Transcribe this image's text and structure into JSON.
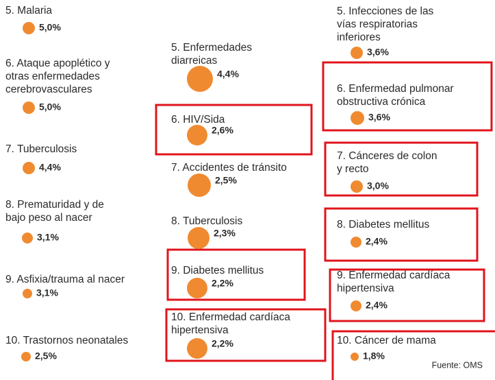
{
  "columns": [
    [
      {
        "lines": [
          "5. Malaria"
        ],
        "value": "5,0%"
      },
      {
        "lines": [
          "6. Ataque apoplético y",
          "otras enfermedades",
          "cerebrovasculares"
        ],
        "value": "5,0%"
      },
      {
        "lines": [
          "7. Tuberculosis"
        ],
        "value": "4,4%"
      },
      {
        "lines": [
          "8. Prematuridad y de",
          "bajo peso al nacer"
        ],
        "value": "3,1%"
      },
      {
        "lines": [
          "9. Asfixia/trauma al nacer"
        ],
        "value": "3,1%"
      },
      {
        "lines": [
          "10. Trastornos neonatales"
        ],
        "value": "2,5%"
      }
    ],
    [
      {
        "lines": [
          "5. Enfermedades",
          "diarreicas"
        ],
        "value": "4,4%"
      },
      {
        "lines": [
          "6. HIV/Sida"
        ],
        "value": "2,6%"
      },
      {
        "lines": [
          "7. Accidentes de tránsito"
        ],
        "value": "2,5%"
      },
      {
        "lines": [
          "8. Tuberculosis"
        ],
        "value": "2,3%"
      },
      {
        "lines": [
          "9. Diabetes mellitus"
        ],
        "value": "2,2%"
      },
      {
        "lines": [
          "10. Enfermedad cardíaca",
          "hipertensiva"
        ],
        "value": "2,2%"
      }
    ],
    [
      {
        "lines": [
          "5. Infecciones de las",
          "vías respiratorias",
          "inferiores"
        ],
        "value": "3,6%"
      },
      {
        "lines": [
          "6. Enfermedad pulmonar",
          "obstructiva crónica"
        ],
        "value": "3,6%"
      },
      {
        "lines": [
          "7. Cánceres de colon",
          "y recto"
        ],
        "value": "3,0%"
      },
      {
        "lines": [
          "8. Diabetes mellitus"
        ],
        "value": "2,4%"
      },
      {
        "lines": [
          "9. Enfermedad cardíaca",
          "hipertensiva"
        ],
        "value": "2,4%"
      },
      {
        "lines": [
          "10. Cáncer de mama"
        ],
        "value": "1,8%"
      }
    ]
  ],
  "source": "Fuente: OMS"
}
